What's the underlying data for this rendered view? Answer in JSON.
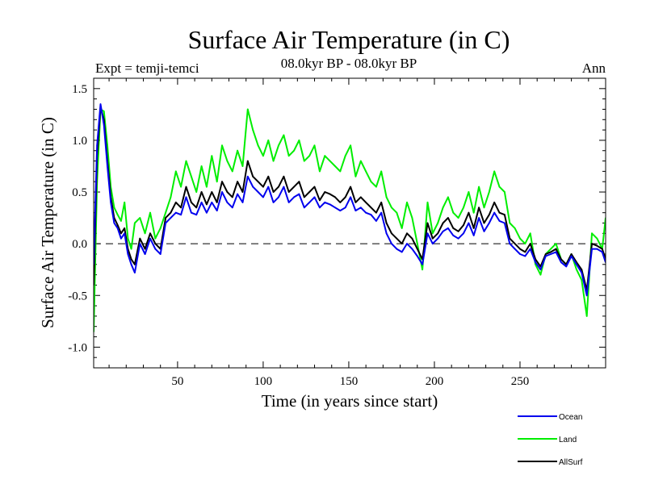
{
  "chart_data": {
    "type": "line",
    "title": "Surface Air Temperature (in C)",
    "subtitle": "08.0kyr BP - 08.0kyr BP",
    "left_annotation": "Expt = temji-temci",
    "right_annotation": "Ann",
    "xlabel": "Time (in years since start)",
    "ylabel": "Surface Air Temperature (in C)",
    "xlim": [
      1,
      300
    ],
    "ylim": [
      -1.2,
      1.6
    ],
    "xticks": [
      50,
      100,
      150,
      200,
      250
    ],
    "yticks": [
      -1.0,
      -0.5,
      0.0,
      0.5,
      1.0,
      1.5
    ],
    "xtick_labels": [
      "50",
      "100",
      "150",
      "200",
      "250"
    ],
    "ytick_labels": [
      "-1.0",
      "-0.5",
      "0.0",
      "0.5",
      "1.0",
      "1.5"
    ],
    "reference_line": 0.0,
    "legend_position": "bottom-right",
    "series": [
      {
        "name": "Land",
        "color": "#00ee00",
        "x": [
          1,
          3,
          5,
          7,
          9,
          11,
          13,
          15,
          17,
          19,
          21,
          23,
          25,
          28,
          31,
          34,
          37,
          40,
          43,
          46,
          49,
          52,
          55,
          58,
          61,
          64,
          67,
          70,
          73,
          76,
          79,
          82,
          85,
          88,
          91,
          94,
          97,
          100,
          103,
          106,
          109,
          112,
          115,
          118,
          121,
          124,
          127,
          130,
          133,
          136,
          139,
          142,
          145,
          148,
          151,
          154,
          157,
          160,
          163,
          166,
          169,
          172,
          175,
          178,
          181,
          184,
          187,
          190,
          193,
          196,
          199,
          202,
          205,
          208,
          211,
          214,
          217,
          220,
          223,
          226,
          229,
          232,
          235,
          238,
          241,
          244,
          247,
          250,
          253,
          256,
          259,
          262,
          265,
          268,
          271,
          274,
          277,
          280,
          283,
          286,
          289,
          292,
          295,
          298,
          300
        ],
        "values": [
          -0.85,
          0.6,
          1.3,
          1.28,
          0.95,
          0.55,
          0.35,
          0.28,
          0.22,
          0.4,
          0.05,
          -0.05,
          0.2,
          0.25,
          0.1,
          0.3,
          0.05,
          0.15,
          0.3,
          0.45,
          0.7,
          0.55,
          0.8,
          0.65,
          0.5,
          0.75,
          0.55,
          0.85,
          0.6,
          0.95,
          0.8,
          0.7,
          0.9,
          0.75,
          1.3,
          1.1,
          0.95,
          0.85,
          1.0,
          0.8,
          0.95,
          1.05,
          0.85,
          0.9,
          1.0,
          0.8,
          0.85,
          0.95,
          0.7,
          0.85,
          0.8,
          0.75,
          0.7,
          0.85,
          0.95,
          0.65,
          0.8,
          0.7,
          0.6,
          0.55,
          0.7,
          0.45,
          0.35,
          0.3,
          0.15,
          0.4,
          0.25,
          0.0,
          -0.25,
          0.4,
          0.1,
          0.2,
          0.35,
          0.45,
          0.3,
          0.25,
          0.35,
          0.5,
          0.3,
          0.55,
          0.35,
          0.5,
          0.7,
          0.55,
          0.5,
          0.2,
          0.15,
          0.05,
          0.0,
          0.1,
          -0.2,
          -0.3,
          -0.1,
          -0.05,
          0.0,
          -0.15,
          -0.2,
          -0.1,
          -0.25,
          -0.35,
          -0.7,
          0.1,
          0.05,
          -0.05,
          0.25
        ]
      },
      {
        "name": "AllSurf",
        "color": "#000000",
        "x": [
          1,
          3,
          5,
          7,
          9,
          11,
          13,
          15,
          17,
          19,
          21,
          23,
          25,
          28,
          31,
          34,
          37,
          40,
          43,
          46,
          49,
          52,
          55,
          58,
          61,
          64,
          67,
          70,
          73,
          76,
          79,
          82,
          85,
          88,
          91,
          94,
          97,
          100,
          103,
          106,
          109,
          112,
          115,
          118,
          121,
          124,
          127,
          130,
          133,
          136,
          139,
          142,
          145,
          148,
          151,
          154,
          157,
          160,
          163,
          166,
          169,
          172,
          175,
          178,
          181,
          184,
          187,
          190,
          193,
          196,
          199,
          202,
          205,
          208,
          211,
          214,
          217,
          220,
          223,
          226,
          229,
          232,
          235,
          238,
          241,
          244,
          247,
          250,
          253,
          256,
          259,
          262,
          265,
          268,
          271,
          274,
          277,
          280,
          283,
          286,
          289,
          292,
          295,
          298,
          300
        ],
        "values": [
          -0.4,
          0.85,
          1.32,
          1.2,
          0.8,
          0.45,
          0.25,
          0.18,
          0.1,
          0.15,
          -0.05,
          -0.15,
          -0.2,
          0.05,
          -0.05,
          0.1,
          0.0,
          -0.05,
          0.25,
          0.3,
          0.4,
          0.35,
          0.55,
          0.4,
          0.35,
          0.5,
          0.38,
          0.5,
          0.4,
          0.6,
          0.5,
          0.45,
          0.6,
          0.5,
          0.8,
          0.65,
          0.6,
          0.55,
          0.65,
          0.5,
          0.55,
          0.65,
          0.5,
          0.55,
          0.6,
          0.45,
          0.5,
          0.55,
          0.42,
          0.5,
          0.48,
          0.45,
          0.4,
          0.45,
          0.55,
          0.4,
          0.45,
          0.4,
          0.35,
          0.3,
          0.4,
          0.2,
          0.1,
          0.05,
          0.0,
          0.1,
          0.05,
          -0.05,
          -0.15,
          0.2,
          0.05,
          0.1,
          0.2,
          0.25,
          0.15,
          0.12,
          0.18,
          0.3,
          0.15,
          0.35,
          0.2,
          0.28,
          0.4,
          0.3,
          0.28,
          0.05,
          0.0,
          -0.05,
          -0.08,
          0.0,
          -0.15,
          -0.22,
          -0.1,
          -0.08,
          -0.05,
          -0.15,
          -0.2,
          -0.1,
          -0.18,
          -0.25,
          -0.45,
          0.0,
          -0.02,
          -0.05,
          -0.15
        ]
      },
      {
        "name": "Ocean",
        "color": "#0000ee",
        "x": [
          1,
          3,
          5,
          7,
          9,
          11,
          13,
          15,
          17,
          19,
          21,
          23,
          25,
          28,
          31,
          34,
          37,
          40,
          43,
          46,
          49,
          52,
          55,
          58,
          61,
          64,
          67,
          70,
          73,
          76,
          79,
          82,
          85,
          88,
          91,
          94,
          97,
          100,
          103,
          106,
          109,
          112,
          115,
          118,
          121,
          124,
          127,
          130,
          133,
          136,
          139,
          142,
          145,
          148,
          151,
          154,
          157,
          160,
          163,
          166,
          169,
          172,
          175,
          178,
          181,
          184,
          187,
          190,
          193,
          196,
          199,
          202,
          205,
          208,
          211,
          214,
          217,
          220,
          223,
          226,
          229,
          232,
          235,
          238,
          241,
          244,
          247,
          250,
          253,
          256,
          259,
          262,
          265,
          268,
          271,
          274,
          277,
          280,
          283,
          286,
          289,
          292,
          295,
          298,
          300
        ],
        "values": [
          -0.2,
          0.95,
          1.35,
          1.15,
          0.75,
          0.4,
          0.2,
          0.15,
          0.05,
          0.1,
          -0.1,
          -0.2,
          -0.28,
          0.0,
          -0.1,
          0.05,
          -0.05,
          -0.1,
          0.2,
          0.25,
          0.3,
          0.28,
          0.45,
          0.3,
          0.28,
          0.4,
          0.3,
          0.4,
          0.32,
          0.5,
          0.4,
          0.35,
          0.48,
          0.4,
          0.65,
          0.55,
          0.5,
          0.45,
          0.55,
          0.4,
          0.45,
          0.55,
          0.4,
          0.45,
          0.48,
          0.35,
          0.4,
          0.45,
          0.35,
          0.4,
          0.38,
          0.35,
          0.32,
          0.35,
          0.45,
          0.32,
          0.35,
          0.3,
          0.28,
          0.22,
          0.3,
          0.1,
          0.0,
          -0.05,
          -0.08,
          0.0,
          -0.05,
          -0.12,
          -0.2,
          0.1,
          0.0,
          0.05,
          0.12,
          0.15,
          0.08,
          0.05,
          0.1,
          0.2,
          0.08,
          0.25,
          0.12,
          0.2,
          0.3,
          0.22,
          0.2,
          0.0,
          -0.05,
          -0.1,
          -0.12,
          -0.05,
          -0.18,
          -0.25,
          -0.12,
          -0.1,
          -0.08,
          -0.18,
          -0.22,
          -0.12,
          -0.2,
          -0.28,
          -0.5,
          -0.05,
          -0.05,
          -0.08,
          -0.18
        ]
      }
    ],
    "legend_entries": [
      {
        "name": "Ocean",
        "color": "#0000ee"
      },
      {
        "name": "Land",
        "color": "#00ee00"
      },
      {
        "name": "AllSurf",
        "color": "#000000"
      }
    ]
  }
}
